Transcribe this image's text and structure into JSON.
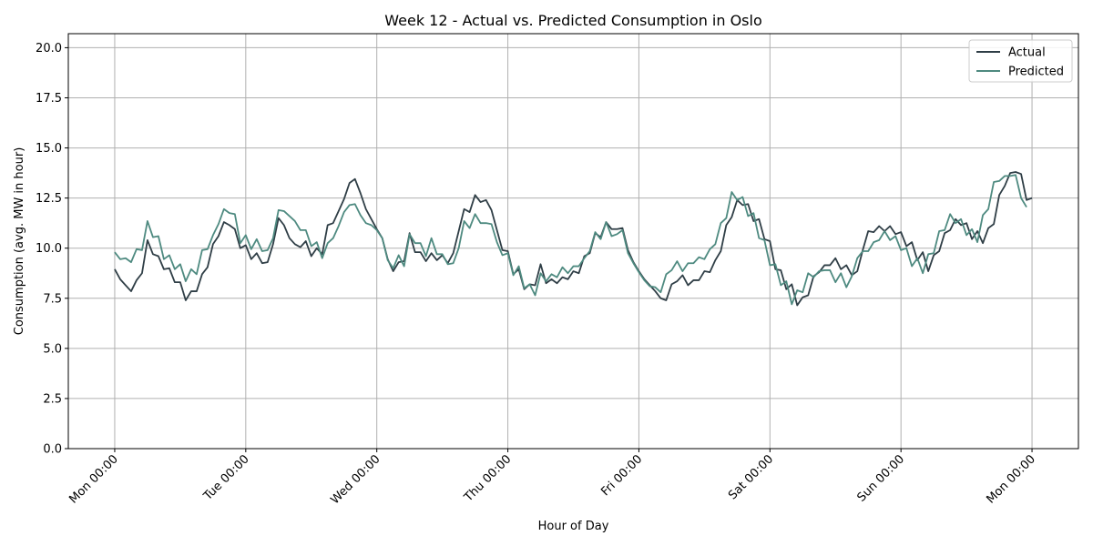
{
  "chart_data": {
    "type": "line",
    "title": "Week 12 - Actual vs. Predicted Consumption in Oslo",
    "xlabel": "Hour of Day",
    "ylabel": "Consumption (avg. MW in hour)",
    "xlim": [
      -8.5,
      176.5
    ],
    "ylim": [
      0,
      20.7
    ],
    "x_unit": "hours since Mon 00:00",
    "x_tick_labels": [
      "Mon 00:00",
      "Tue 00:00",
      "Wed 00:00",
      "Thu 00:00",
      "Fri 00:00",
      "Sat 00:00",
      "Sun 00:00",
      "Mon 00:00"
    ],
    "x_tick_values": [
      0,
      24,
      48,
      72,
      96,
      120,
      144,
      168
    ],
    "y_ticks": [
      0.0,
      2.5,
      5.0,
      7.5,
      10.0,
      12.5,
      15.0,
      17.5,
      20.0
    ],
    "y_tick_labels": [
      "0.0",
      "2.5",
      "5.0",
      "7.5",
      "10.0",
      "12.5",
      "15.0",
      "17.5",
      "20.0"
    ],
    "grid": true,
    "legend_position": "top-right",
    "series": [
      {
        "name": "Actual",
        "color": "#2f3e46",
        "values": [
          8.95,
          8.45,
          8.15,
          7.85,
          8.4,
          8.75,
          10.4,
          9.7,
          9.6,
          8.95,
          9.0,
          8.3,
          8.3,
          7.4,
          7.85,
          7.85,
          8.7,
          9.05,
          10.2,
          10.6,
          11.3,
          11.15,
          10.95,
          10.0,
          10.15,
          9.45,
          9.75,
          9.25,
          9.3,
          10.2,
          11.5,
          11.15,
          10.5,
          10.2,
          10.05,
          10.35,
          9.6,
          10.0,
          9.7,
          11.15,
          11.25,
          11.85,
          12.45,
          13.25,
          13.45,
          12.75,
          11.95,
          11.45,
          10.95,
          10.5,
          9.45,
          8.85,
          9.3,
          9.35,
          10.75,
          9.8,
          9.8,
          9.35,
          9.75,
          9.4,
          9.65,
          9.25,
          9.75,
          10.85,
          11.95,
          11.8,
          12.65,
          12.3,
          12.4,
          11.9,
          10.9,
          9.9,
          9.85,
          8.7,
          8.95,
          7.95,
          8.2,
          8.15,
          9.2,
          8.25,
          8.45,
          8.25,
          8.55,
          8.45,
          8.85,
          8.75,
          9.6,
          9.75,
          10.75,
          10.55,
          11.3,
          10.95,
          10.95,
          11.0,
          9.9,
          9.3,
          8.85,
          8.45,
          8.15,
          7.85,
          7.5,
          7.4,
          8.2,
          8.35,
          8.65,
          8.15,
          8.4,
          8.4,
          8.85,
          8.8,
          9.4,
          9.85,
          11.15,
          11.55,
          12.4,
          12.15,
          12.2,
          11.35,
          11.45,
          10.45,
          10.35,
          8.95,
          8.9,
          7.95,
          8.2,
          7.15,
          7.55,
          7.65,
          8.6,
          8.8,
          9.15,
          9.15,
          9.5,
          8.95,
          9.15,
          8.65,
          8.85,
          9.9,
          10.85,
          10.8,
          11.1,
          10.85,
          11.1,
          10.7,
          10.8,
          10.1,
          10.3,
          9.4,
          9.8,
          8.85,
          9.65,
          9.85,
          10.75,
          10.9,
          11.45,
          11.15,
          11.25,
          10.45,
          10.85,
          10.25,
          11.0,
          11.2,
          12.65,
          13.1,
          13.75,
          13.8,
          13.7,
          12.4,
          12.5
        ]
      },
      {
        "name": "Predicted",
        "color": "#4e8a80",
        "values": [
          9.8,
          9.45,
          9.5,
          9.3,
          9.95,
          9.9,
          11.35,
          10.55,
          10.6,
          9.45,
          9.65,
          8.95,
          9.2,
          8.35,
          8.95,
          8.7,
          9.9,
          9.95,
          10.65,
          11.2,
          11.95,
          11.75,
          11.7,
          10.25,
          10.65,
          9.95,
          10.45,
          9.85,
          9.9,
          10.5,
          11.9,
          11.85,
          11.6,
          11.35,
          10.9,
          10.9,
          10.1,
          10.3,
          9.5,
          10.25,
          10.5,
          11.1,
          11.8,
          12.15,
          12.2,
          11.65,
          11.25,
          11.15,
          10.9,
          10.5,
          9.4,
          9.0,
          9.65,
          9.1,
          10.7,
          10.25,
          10.25,
          9.6,
          10.5,
          9.7,
          9.7,
          9.2,
          9.25,
          10.0,
          11.35,
          11.0,
          11.7,
          11.25,
          11.25,
          11.2,
          10.3,
          9.65,
          9.75,
          8.65,
          9.1,
          8.0,
          8.2,
          7.65,
          8.75,
          8.35,
          8.7,
          8.55,
          9.05,
          8.75,
          9.1,
          9.1,
          9.5,
          9.85,
          10.8,
          10.45,
          11.3,
          10.6,
          10.7,
          10.9,
          9.75,
          9.25,
          8.8,
          8.4,
          8.1,
          8.05,
          7.8,
          8.7,
          8.9,
          9.35,
          8.85,
          9.25,
          9.25,
          9.55,
          9.45,
          9.95,
          10.2,
          11.25,
          11.5,
          12.8,
          12.4,
          12.55,
          11.6,
          11.75,
          10.5,
          10.4,
          9.15,
          9.2,
          8.15,
          8.35,
          7.2,
          7.9,
          7.8,
          8.75,
          8.55,
          8.85,
          8.9,
          8.9,
          8.3,
          8.75,
          8.05,
          8.6,
          9.5,
          9.85,
          9.85,
          10.3,
          10.4,
          10.85,
          10.4,
          10.6,
          9.9,
          10.0,
          9.1,
          9.5,
          8.75,
          9.7,
          9.75,
          10.85,
          10.9,
          11.7,
          11.25,
          11.45,
          10.65,
          10.95,
          10.3,
          11.65,
          11.95,
          13.3,
          13.35,
          13.6,
          13.6,
          13.65,
          12.5,
          12.05
        ]
      }
    ]
  }
}
